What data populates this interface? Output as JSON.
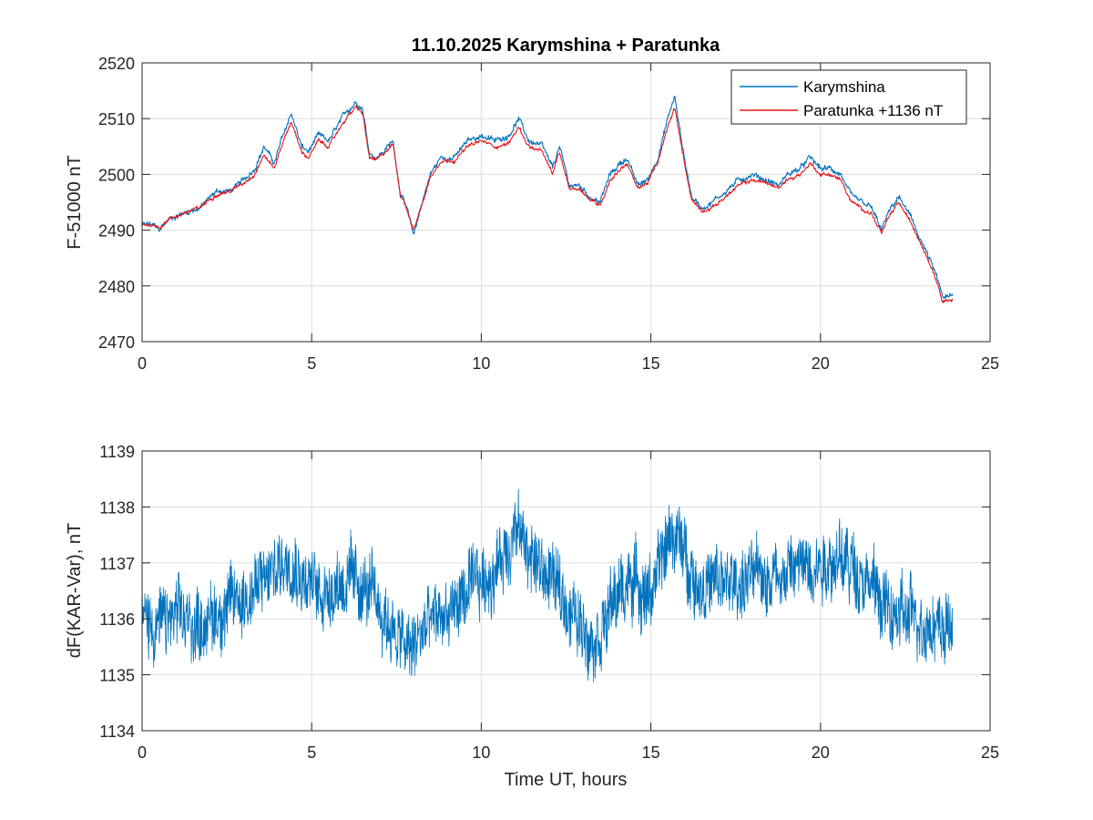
{
  "chart_data": [
    {
      "type": "line",
      "title": "11.10.2025  Karymshina + Paratunka",
      "xlabel": "",
      "ylabel": "F-51000 nT",
      "xlim": [
        0,
        25
      ],
      "ylim": [
        2470,
        2520
      ],
      "xticks": [
        0,
        5,
        10,
        15,
        20,
        25
      ],
      "yticks": [
        2470,
        2480,
        2490,
        2500,
        2510,
        2520
      ],
      "grid": true,
      "legend_position": "top-right",
      "series": [
        {
          "name": "Karymshina",
          "color": "#0072BD",
          "noise": 0.7,
          "x": [
            0,
            0.3,
            0.5,
            0.8,
            1.2,
            1.7,
            2.2,
            2.6,
            3.0,
            3.3,
            3.6,
            3.9,
            4.1,
            4.4,
            4.7,
            4.9,
            5.2,
            5.5,
            5.8,
            6.0,
            6.3,
            6.5,
            6.7,
            6.9,
            7.1,
            7.4,
            7.6,
            7.8,
            8.0,
            8.3,
            8.5,
            8.8,
            9.2,
            9.6,
            10.0,
            10.4,
            10.8,
            11.1,
            11.4,
            11.8,
            12.1,
            12.3,
            12.6,
            12.9,
            13.2,
            13.5,
            13.8,
            14.1,
            14.3,
            14.6,
            14.9,
            15.2,
            15.5,
            15.7,
            15.9,
            16.2,
            16.5,
            16.8,
            17.2,
            17.6,
            18.0,
            18.4,
            18.8,
            19.0,
            19.4,
            19.7,
            20.0,
            20.3,
            20.6,
            20.9,
            21.2,
            21.5,
            21.8,
            22.0,
            22.3,
            22.6,
            22.9,
            23.2,
            23.4,
            23.6,
            23.9
          ],
          "values": [
            2491,
            2491,
            2490,
            2492,
            2493,
            2494,
            2497,
            2497,
            2499,
            2501,
            2505,
            2502,
            2506,
            2511,
            2505,
            2504,
            2507,
            2506,
            2509,
            2511,
            2513,
            2512,
            2504,
            2503,
            2504,
            2506,
            2497,
            2494,
            2489,
            2496,
            2500,
            2503,
            2503,
            2506,
            2507,
            2506,
            2507,
            2510,
            2506,
            2505,
            2501,
            2505,
            2498,
            2498,
            2496,
            2495,
            2500,
            2502,
            2503,
            2498,
            2499,
            2503,
            2510,
            2514,
            2506,
            2496,
            2494,
            2495,
            2497,
            2499,
            2500,
            2499,
            2498,
            2500,
            2501,
            2503,
            2501,
            2501,
            2500,
            2496,
            2495,
            2494,
            2490,
            2493,
            2496,
            2493,
            2489,
            2485,
            2482,
            2478,
            2478
          ]
        },
        {
          "name": "Paratunka +1136 nT",
          "color": "#E8141B",
          "noise": 0.45,
          "x": [
            0,
            0.3,
            0.5,
            0.8,
            1.2,
            1.7,
            2.2,
            2.6,
            3.0,
            3.3,
            3.6,
            3.9,
            4.1,
            4.4,
            4.7,
            4.9,
            5.2,
            5.5,
            5.8,
            6.0,
            6.3,
            6.5,
            6.7,
            6.9,
            7.1,
            7.4,
            7.6,
            7.8,
            8.0,
            8.3,
            8.5,
            8.8,
            9.2,
            9.6,
            10.0,
            10.4,
            10.8,
            11.1,
            11.4,
            11.8,
            12.1,
            12.3,
            12.6,
            12.9,
            13.2,
            13.5,
            13.8,
            14.1,
            14.3,
            14.6,
            14.9,
            15.2,
            15.5,
            15.7,
            15.9,
            16.2,
            16.5,
            16.8,
            17.2,
            17.6,
            18.0,
            18.4,
            18.8,
            19.0,
            19.4,
            19.7,
            20.0,
            20.3,
            20.6,
            20.9,
            21.2,
            21.5,
            21.8,
            22.0,
            22.3,
            22.6,
            22.9,
            23.2,
            23.4,
            23.6,
            23.9
          ],
          "values": [
            2491,
            2491,
            2490.5,
            2492,
            2493,
            2494,
            2496.5,
            2497,
            2498.5,
            2500,
            2503.5,
            2501,
            2505,
            2509.5,
            2504,
            2503,
            2506,
            2505,
            2508,
            2510,
            2512,
            2511,
            2503,
            2502.5,
            2503.5,
            2505.5,
            2497,
            2494,
            2490,
            2495.5,
            2499.5,
            2502.5,
            2502.5,
            2505,
            2506,
            2505,
            2505.5,
            2508.5,
            2505,
            2504,
            2500,
            2504,
            2497.5,
            2497.5,
            2495.5,
            2494.5,
            2499,
            2501,
            2502,
            2497.5,
            2498.5,
            2502,
            2508.5,
            2512,
            2505,
            2495.5,
            2493.5,
            2494,
            2496,
            2498,
            2499,
            2498.5,
            2497.5,
            2499,
            2500,
            2502,
            2500,
            2500,
            2499,
            2495,
            2494,
            2493,
            2489.5,
            2492,
            2495,
            2492,
            2488.5,
            2484.5,
            2481.5,
            2477.5,
            2477.5
          ]
        }
      ]
    },
    {
      "type": "line",
      "title": "",
      "xlabel": "Time UT, hours",
      "ylabel": "dF(KAR-Var), nT",
      "xlim": [
        0,
        25
      ],
      "ylim": [
        1134,
        1139
      ],
      "xticks": [
        0,
        5,
        10,
        15,
        20,
        25
      ],
      "yticks": [
        1134,
        1135,
        1136,
        1137,
        1138,
        1139
      ],
      "grid": true,
      "series": [
        {
          "name": "dF",
          "color": "#0072BD",
          "noise": 0.55,
          "x": [
            0,
            0.5,
            1.0,
            1.5,
            2.0,
            2.5,
            3.0,
            3.5,
            4.0,
            4.4,
            4.8,
            5.2,
            5.6,
            6.0,
            6.4,
            6.8,
            7.2,
            7.6,
            7.9,
            8.3,
            8.7,
            9.1,
            9.5,
            9.9,
            10.3,
            10.7,
            11.0,
            11.3,
            11.7,
            12.1,
            12.5,
            12.9,
            13.3,
            13.7,
            14.1,
            14.5,
            14.9,
            15.3,
            15.6,
            15.9,
            16.3,
            16.8,
            17.3,
            17.8,
            18.3,
            18.8,
            19.3,
            19.8,
            20.3,
            20.8,
            21.3,
            21.6,
            22.0,
            22.5,
            23.0,
            23.5,
            23.9
          ],
          "values": [
            1136.0,
            1135.9,
            1136.0,
            1135.9,
            1136.0,
            1136.2,
            1136.4,
            1136.6,
            1136.9,
            1137.2,
            1136.7,
            1136.5,
            1136.6,
            1136.7,
            1136.6,
            1136.4,
            1136.0,
            1135.6,
            1135.4,
            1135.8,
            1136.0,
            1136.1,
            1136.4,
            1136.6,
            1136.8,
            1137.2,
            1137.6,
            1137.3,
            1136.9,
            1136.7,
            1136.3,
            1135.9,
            1135.7,
            1136.0,
            1136.5,
            1136.7,
            1136.4,
            1136.9,
            1137.6,
            1137.3,
            1136.7,
            1136.6,
            1136.6,
            1136.7,
            1136.8,
            1136.8,
            1136.9,
            1137.0,
            1137.1,
            1137.0,
            1136.8,
            1136.5,
            1136.1,
            1136.0,
            1136.0,
            1135.9,
            1135.8
          ]
        }
      ]
    }
  ]
}
